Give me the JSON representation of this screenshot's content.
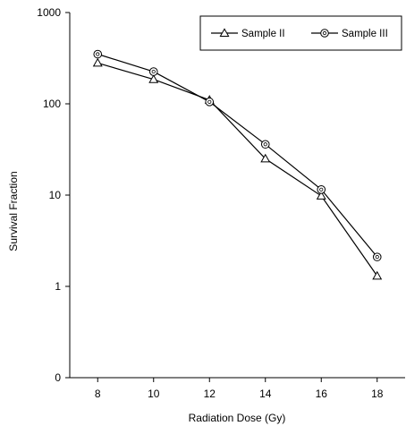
{
  "chart_data": {
    "type": "line",
    "xlabel": "Radiation Dose (Gy)",
    "ylabel": "Survival  Fraction",
    "x": [
      8,
      10,
      12,
      14,
      16,
      18
    ],
    "xlim": [
      7,
      19
    ],
    "xticks": [
      8,
      10,
      12,
      14,
      16,
      18
    ],
    "ylim": [
      0.1,
      1000
    ],
    "yscale": "log",
    "yticks": [
      0.1,
      1,
      10,
      100,
      1000
    ],
    "ytick_labels": [
      "0",
      "1",
      "10",
      "100",
      "1000"
    ],
    "grid": false,
    "legend_position": "top-right",
    "series": [
      {
        "name": "Sample II",
        "marker": "triangle",
        "values": [
          280,
          185,
          110,
          25,
          9.8,
          1.3
        ]
      },
      {
        "name": "Sample III",
        "marker": "circle",
        "values": [
          350,
          225,
          105,
          36,
          11.5,
          2.1
        ]
      }
    ]
  }
}
